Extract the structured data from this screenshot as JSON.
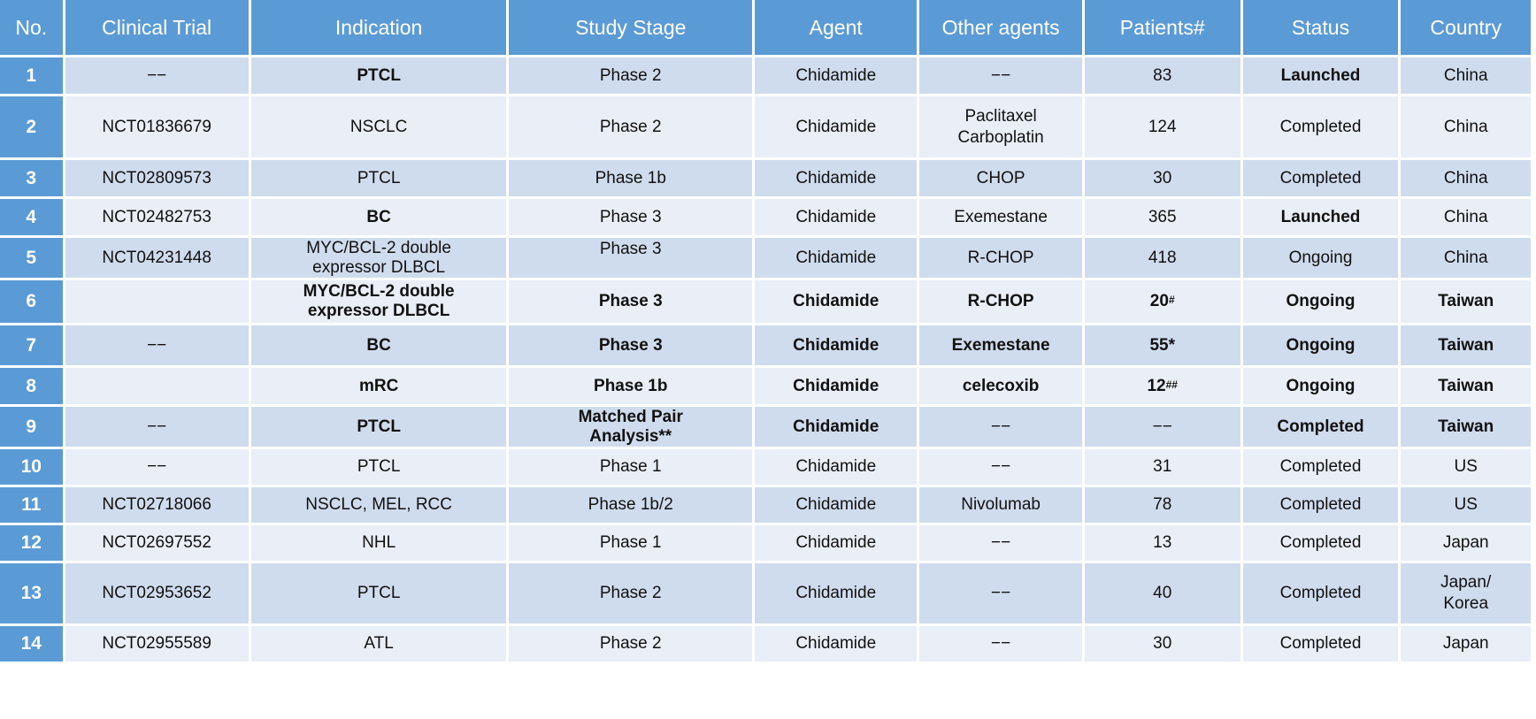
{
  "headers": [
    "No.",
    "Clinical Trial",
    "Indication",
    "Study Stage",
    "Agent",
    "Other agents",
    "Patients#",
    "Status",
    "Country"
  ],
  "rows": [
    {
      "no": "1",
      "trial": "−−",
      "indication": "PTCL",
      "stage": "Phase 2",
      "agent": "Chidamide",
      "other": "−−",
      "patients": "83",
      "patients_sup": "",
      "status": "Launched",
      "country": "China"
    },
    {
      "no": "2",
      "trial": "NCT01836679",
      "indication": "NSCLC",
      "stage": "Phase 2",
      "agent": "Chidamide",
      "other": "Paclitaxel Carboplatin",
      "patients": "124",
      "patients_sup": "",
      "status": "Completed",
      "country": "China"
    },
    {
      "no": "3",
      "trial": "NCT02809573",
      "indication": "PTCL",
      "stage": "Phase 1b",
      "agent": "Chidamide",
      "other": "CHOP",
      "patients": "30",
      "patients_sup": "",
      "status": "Completed",
      "country": "China"
    },
    {
      "no": "4",
      "trial": "NCT02482753",
      "indication": "BC",
      "stage": "Phase 3",
      "agent": "Chidamide",
      "other": "Exemestane",
      "patients": "365",
      "patients_sup": "",
      "status": "Launched",
      "country": "China"
    },
    {
      "no": "5",
      "trial": "NCT04231448",
      "indication": "MYC/BCL-2 double expressor DLBCL",
      "stage": "Phase 3",
      "agent": "Chidamide",
      "other": "R-CHOP",
      "patients": "418",
      "patients_sup": "",
      "status": "Ongoing",
      "country": "China"
    },
    {
      "no": "6",
      "trial": "",
      "indication": "MYC/BCL-2 double expressor DLBCL",
      "stage": "Phase 3",
      "agent": "Chidamide",
      "other": "R-CHOP",
      "patients": "20",
      "patients_sup": "#",
      "status": "Ongoing",
      "country": "Taiwan"
    },
    {
      "no": "7",
      "trial": "−−",
      "indication": "BC",
      "stage": "Phase 3",
      "agent": "Chidamide",
      "other": "Exemestane",
      "patients": "55*",
      "patients_sup": "",
      "status": "Ongoing",
      "country": "Taiwan"
    },
    {
      "no": "8",
      "trial": "",
      "indication": "mRC",
      "stage": "Phase 1b",
      "agent": "Chidamide",
      "other": "celecoxib",
      "patients": "12",
      "patients_sup": "##",
      "status": "Ongoing",
      "country": "Taiwan"
    },
    {
      "no": "9",
      "trial": "−−",
      "indication": "PTCL",
      "stage": "Matched Pair Analysis**",
      "agent": "Chidamide",
      "other": "−−",
      "patients": "−−",
      "patients_sup": "",
      "status": "Completed",
      "country": "Taiwan"
    },
    {
      "no": "10",
      "trial": "−−",
      "indication": "PTCL",
      "stage": "Phase 1",
      "agent": "Chidamide",
      "other": "−−",
      "patients": "31",
      "patients_sup": "",
      "status": "Completed",
      "country": "US"
    },
    {
      "no": "11",
      "trial": "NCT02718066",
      "indication": "NSCLC, MEL, RCC",
      "stage": "Phase 1b/2",
      "agent": "Chidamide",
      "other": "Nivolumab",
      "patients": "78",
      "patients_sup": "",
      "status": "Completed",
      "country": "US"
    },
    {
      "no": "12",
      "trial": "NCT02697552",
      "indication": "NHL",
      "stage": "Phase 1",
      "agent": "Chidamide",
      "other": "−−",
      "patients": "13",
      "patients_sup": "",
      "status": "Completed",
      "country": "Japan"
    },
    {
      "no": "13",
      "trial": "NCT02953652",
      "indication": "PTCL",
      "stage": "Phase 2",
      "agent": "Chidamide",
      "other": "−−",
      "patients": "40",
      "patients_sup": "",
      "status": "Completed",
      "country": "Japan/ Korea"
    },
    {
      "no": "14",
      "trial": "NCT02955589",
      "indication": "ATL",
      "stage": "Phase 2",
      "agent": "Chidamide",
      "other": "−−",
      "patients": "30",
      "patients_sup": "",
      "status": "Completed",
      "country": "Japan"
    }
  ]
}
